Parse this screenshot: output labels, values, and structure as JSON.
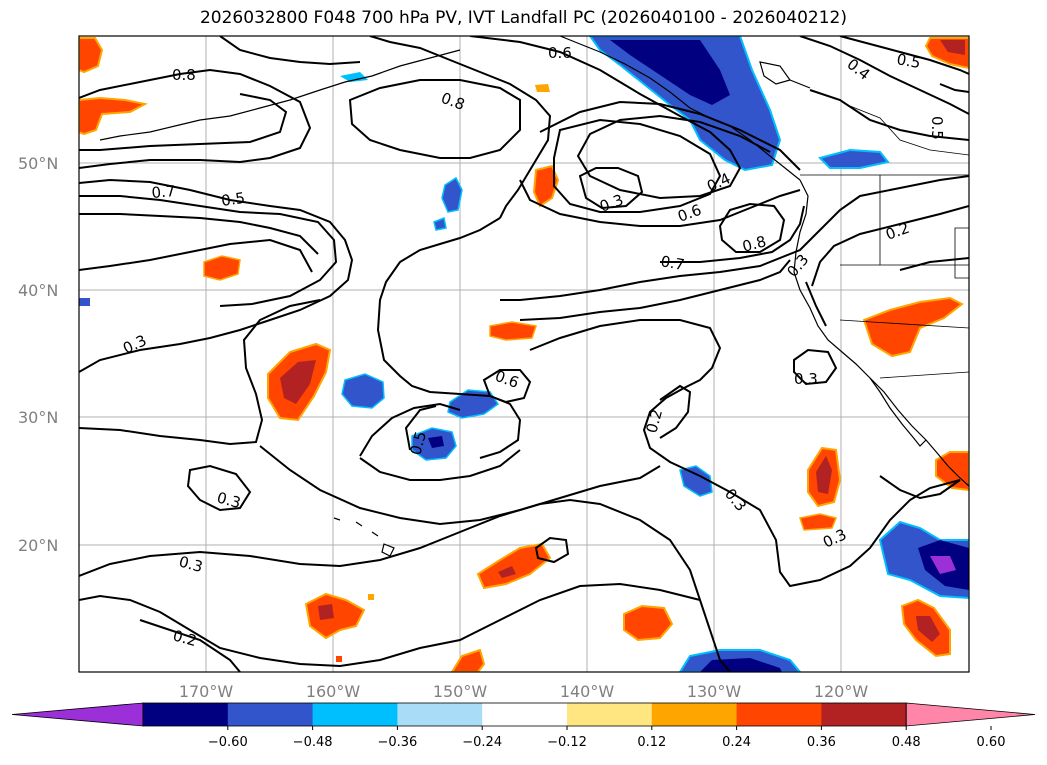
{
  "title": "2026032800 F048 700 hPa PV, IVT Landfall PC (2026040100 - 2026040212)",
  "lat_labels": [
    "50°N",
    "40°N",
    "30°N",
    "20°N"
  ],
  "lon_labels": [
    "170°W",
    "160°W",
    "150°W",
    "140°W",
    "130°W",
    "120°W"
  ],
  "contour_labels": [
    "0.8",
    "0.8",
    "0.7",
    "0.5",
    "0.6",
    "0.5",
    "0.4",
    "0.5",
    "0.3",
    "0.4",
    "0.6",
    "0.8",
    "0.7",
    "0.3",
    "0.2",
    "0.3",
    "0.3",
    "0.6",
    "0.5",
    "0.2",
    "0.3",
    "0.3",
    "0.3",
    "0.3",
    "0.2"
  ],
  "colorbar": {
    "ticks": [
      "−0.60",
      "−0.48",
      "−0.36",
      "−0.24",
      "−0.12",
      "0.12",
      "0.24",
      "0.36",
      "0.48",
      "0.60"
    ],
    "colors": [
      "#9b30d9",
      "#000080",
      "#3355cc",
      "#00bfff",
      "#a8dcf7",
      "#ffffff",
      "#ffe680",
      "#ffa500",
      "#ff4500",
      "#b22222",
      "#ff85a9"
    ]
  },
  "fill_colors": {
    "neg_light": "#a8dcf7",
    "neg_cyan": "#00bfff",
    "neg_blue": "#3355cc",
    "neg_navy": "#000080",
    "neg_purple": "#9b30d9",
    "pos_yellow": "#ffe680",
    "pos_orange": "#ffa500",
    "pos_red": "#ff4500",
    "pos_darkred": "#b22222",
    "pos_pink": "#ff85a9"
  }
}
